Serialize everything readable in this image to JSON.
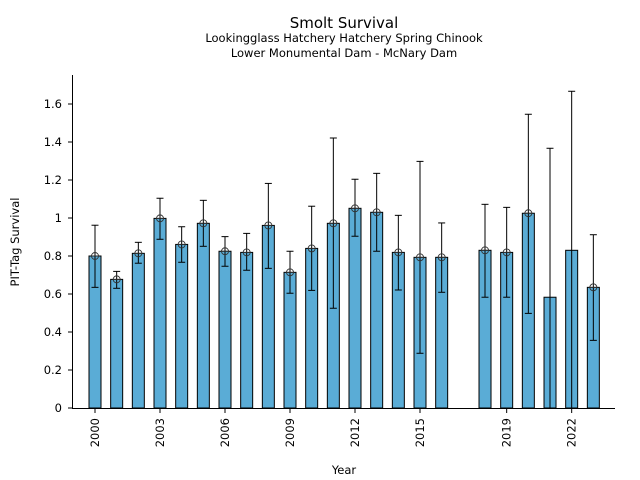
{
  "chart_data": {
    "type": "bar",
    "title": "Smolt Survival",
    "subtitle_lines": [
      "Lookingglass Hatchery Hatchery Spring Chinook",
      "Lower Monumental Dam - McNary Dam"
    ],
    "xlabel": "Year",
    "ylabel": "PIT-Tag Survival",
    "xlim": [
      1999.3,
      2023.8
    ],
    "ylim": [
      0,
      1.75
    ],
    "xticks": [
      2000,
      2003,
      2006,
      2009,
      2012,
      2015,
      2019,
      2022
    ],
    "xtick_labels": [
      "2000",
      "2003",
      "2006",
      "2009",
      "2012",
      "2015",
      "2019",
      "2022"
    ],
    "yticks": [
      0,
      0.2,
      0.4,
      0.6,
      0.8,
      1.0,
      1.2,
      1.4,
      1.6
    ],
    "ytick_labels": [
      "0",
      "0.2",
      "0.4",
      "0.6",
      "0.8",
      "1",
      "1.2",
      "1.4",
      "1.6"
    ],
    "grid": false,
    "bar_color": "#5aacd6",
    "edge_color": "#000000",
    "points": [
      {
        "year": 2000,
        "value": 0.8,
        "lower": 0.635,
        "upper": 0.962,
        "marker": true
      },
      {
        "year": 2001,
        "value": 0.677,
        "lower": 0.63,
        "upper": 0.719,
        "marker": true
      },
      {
        "year": 2002,
        "value": 0.814,
        "lower": 0.762,
        "upper": 0.872,
        "marker": true
      },
      {
        "year": 2003,
        "value": 0.998,
        "lower": 0.888,
        "upper": 1.104,
        "marker": true
      },
      {
        "year": 2004,
        "value": 0.861,
        "lower": 0.767,
        "upper": 0.954,
        "marker": true
      },
      {
        "year": 2005,
        "value": 0.972,
        "lower": 0.851,
        "upper": 1.093,
        "marker": true
      },
      {
        "year": 2006,
        "value": 0.825,
        "lower": 0.746,
        "upper": 0.902,
        "marker": true
      },
      {
        "year": 2007,
        "value": 0.819,
        "lower": 0.725,
        "upper": 0.919,
        "marker": true
      },
      {
        "year": 2008,
        "value": 0.961,
        "lower": 0.735,
        "upper": 1.182,
        "marker": true
      },
      {
        "year": 2009,
        "value": 0.714,
        "lower": 0.604,
        "upper": 0.825,
        "marker": true
      },
      {
        "year": 2010,
        "value": 0.84,
        "lower": 0.619,
        "upper": 1.062,
        "marker": true
      },
      {
        "year": 2011,
        "value": 0.972,
        "lower": 0.525,
        "upper": 1.421,
        "marker": true
      },
      {
        "year": 2012,
        "value": 1.051,
        "lower": 0.904,
        "upper": 1.204,
        "marker": true
      },
      {
        "year": 2013,
        "value": 1.03,
        "lower": 0.825,
        "upper": 1.235,
        "marker": true
      },
      {
        "year": 2014,
        "value": 0.819,
        "lower": 0.621,
        "upper": 1.014,
        "marker": true
      },
      {
        "year": 2015,
        "value": 0.793,
        "lower": 0.288,
        "upper": 1.298,
        "marker": true
      },
      {
        "year": 2016,
        "value": 0.793,
        "lower": 0.609,
        "upper": 0.974,
        "marker": true
      },
      {
        "year": 2018,
        "value": 0.83,
        "lower": 0.583,
        "upper": 1.072,
        "marker": true
      },
      {
        "year": 2019,
        "value": 0.819,
        "lower": 0.583,
        "upper": 1.056,
        "marker": true
      },
      {
        "year": 2020,
        "value": 1.025,
        "lower": 0.498,
        "upper": 1.546,
        "marker": true
      },
      {
        "year": 2021,
        "value": 0.583,
        "lower": 0.0,
        "upper": 1.367,
        "marker": false
      },
      {
        "year": 2022,
        "value": 0.83,
        "lower": 0.0,
        "upper": 1.667,
        "marker": false
      },
      {
        "year": 2023,
        "value": 0.635,
        "lower": 0.356,
        "upper": 0.912,
        "marker": true
      }
    ]
  }
}
